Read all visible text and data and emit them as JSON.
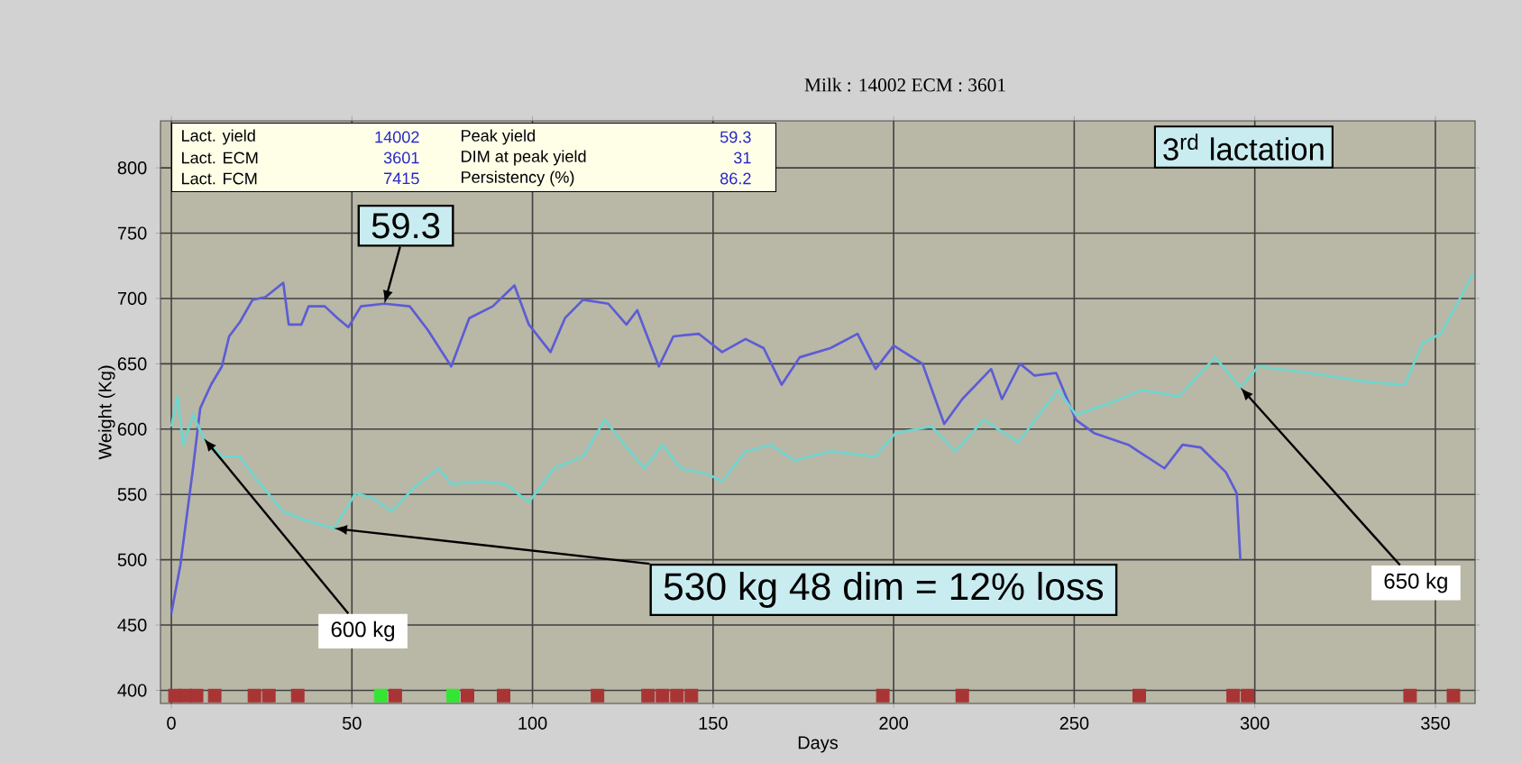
{
  "chart_data": {
    "type": "line",
    "title": "Milk : 14002   ECM : 3601",
    "xlabel": "Days",
    "ylabel": "Weight (Kg)",
    "xlim": [
      -3,
      361
    ],
    "ylim": [
      390,
      836
    ],
    "xticks": [
      0,
      50,
      100,
      150,
      200,
      250,
      300,
      350
    ],
    "yticks": [
      400,
      450,
      500,
      550,
      600,
      650,
      700,
      750,
      800
    ],
    "grid": true,
    "series": [
      {
        "color": "#5c5cd6",
        "x": [
          0,
          2.5,
          6,
          8,
          11,
          14,
          16,
          19,
          22.5,
          26,
          31,
          32.5,
          36,
          38,
          42.5,
          46,
          49,
          52.5,
          59,
          66,
          71,
          77.5,
          82.5,
          89,
          95,
          99,
          105,
          109,
          114,
          121,
          126,
          129,
          135,
          139,
          146,
          152.5,
          159,
          164,
          169,
          174,
          182.5,
          190,
          195,
          200,
          208,
          214,
          219,
          227,
          230,
          235,
          239,
          245,
          250.5,
          255.5,
          265,
          275,
          280,
          285,
          292,
          295,
          296
        ],
        "values": [
          459,
          496,
          570,
          616,
          634,
          648,
          671,
          682,
          699,
          701,
          712,
          680,
          680,
          694,
          694,
          685,
          678,
          694,
          696,
          694,
          676,
          648,
          685,
          694,
          710,
          680,
          659,
          685,
          699,
          696,
          680,
          691,
          648,
          671,
          673,
          659,
          669,
          662,
          634,
          655,
          662,
          673,
          646,
          664,
          650,
          604,
          623,
          646,
          623,
          650,
          641,
          643,
          607,
          597,
          588,
          570,
          588,
          586,
          567,
          551,
          500
        ]
      },
      {
        "color": "#6fd6cf",
        "x": [
          0,
          1.7,
          3.3,
          6,
          9,
          14,
          19,
          24,
          31,
          37.5,
          45,
          48,
          51,
          56,
          61,
          67.5,
          74,
          77.5,
          86,
          92.5,
          99,
          106,
          114,
          120,
          124,
          131,
          136,
          141,
          149,
          152.5,
          159,
          166,
          172.5,
          182.5,
          195,
          200.5,
          210.5,
          217,
          225,
          234.5,
          245.5,
          250.5,
          260,
          269,
          279,
          289,
          296,
          301,
          315,
          331.5,
          341.5,
          346.5,
          351.5,
          360.5
        ],
        "values": [
          602,
          625,
          588,
          611,
          593,
          579,
          579,
          560,
          537,
          530,
          524,
          537,
          551,
          547,
          537,
          556,
          570,
          558,
          560,
          558,
          544,
          570,
          579,
          607,
          593,
          570,
          588,
          570,
          565,
          560,
          583,
          588,
          576,
          583,
          579,
          597,
          602,
          583,
          607,
          590,
          630,
          611,
          620,
          630,
          625,
          655,
          632,
          648,
          643,
          636,
          634,
          666,
          673,
          719
        ]
      },
      {
        "type": "scatter",
        "marker": "square",
        "color": "#a83434",
        "x": [
          1,
          4,
          7,
          12,
          23,
          27,
          35,
          62,
          82,
          92,
          118,
          132,
          136,
          140,
          144,
          197,
          219,
          268,
          294,
          298,
          343,
          355
        ],
        "values": [
          396,
          396,
          396,
          396,
          396,
          396,
          396,
          396,
          396,
          396,
          396,
          396,
          396,
          396,
          396,
          396,
          396,
          396,
          396,
          396,
          396,
          396
        ]
      },
      {
        "type": "scatter",
        "marker": "square",
        "color": "#33e633",
        "x": [
          58,
          78
        ],
        "values": [
          396,
          396
        ]
      }
    ],
    "annotations": [
      "Lact. yield",
      "14002",
      "Peak yield",
      "59.3",
      "Lact. ECM",
      "3601",
      "DIM at peak yield",
      "31",
      "Lact. FCM",
      "7415",
      "Persistency (%)",
      "86.2",
      "3$^{rd}$ lactation",
      {
        "text": "59.3",
        "x": 59,
        "y": 696
      },
      {
        "text": "600 kg",
        "x": 9,
        "y": 593
      },
      {
        "text": "530 kg 48 dim = 12% loss",
        "x": 45,
        "y": 524
      },
      {
        "text": "650 kg",
        "x": 296,
        "y": 632
      }
    ]
  }
}
